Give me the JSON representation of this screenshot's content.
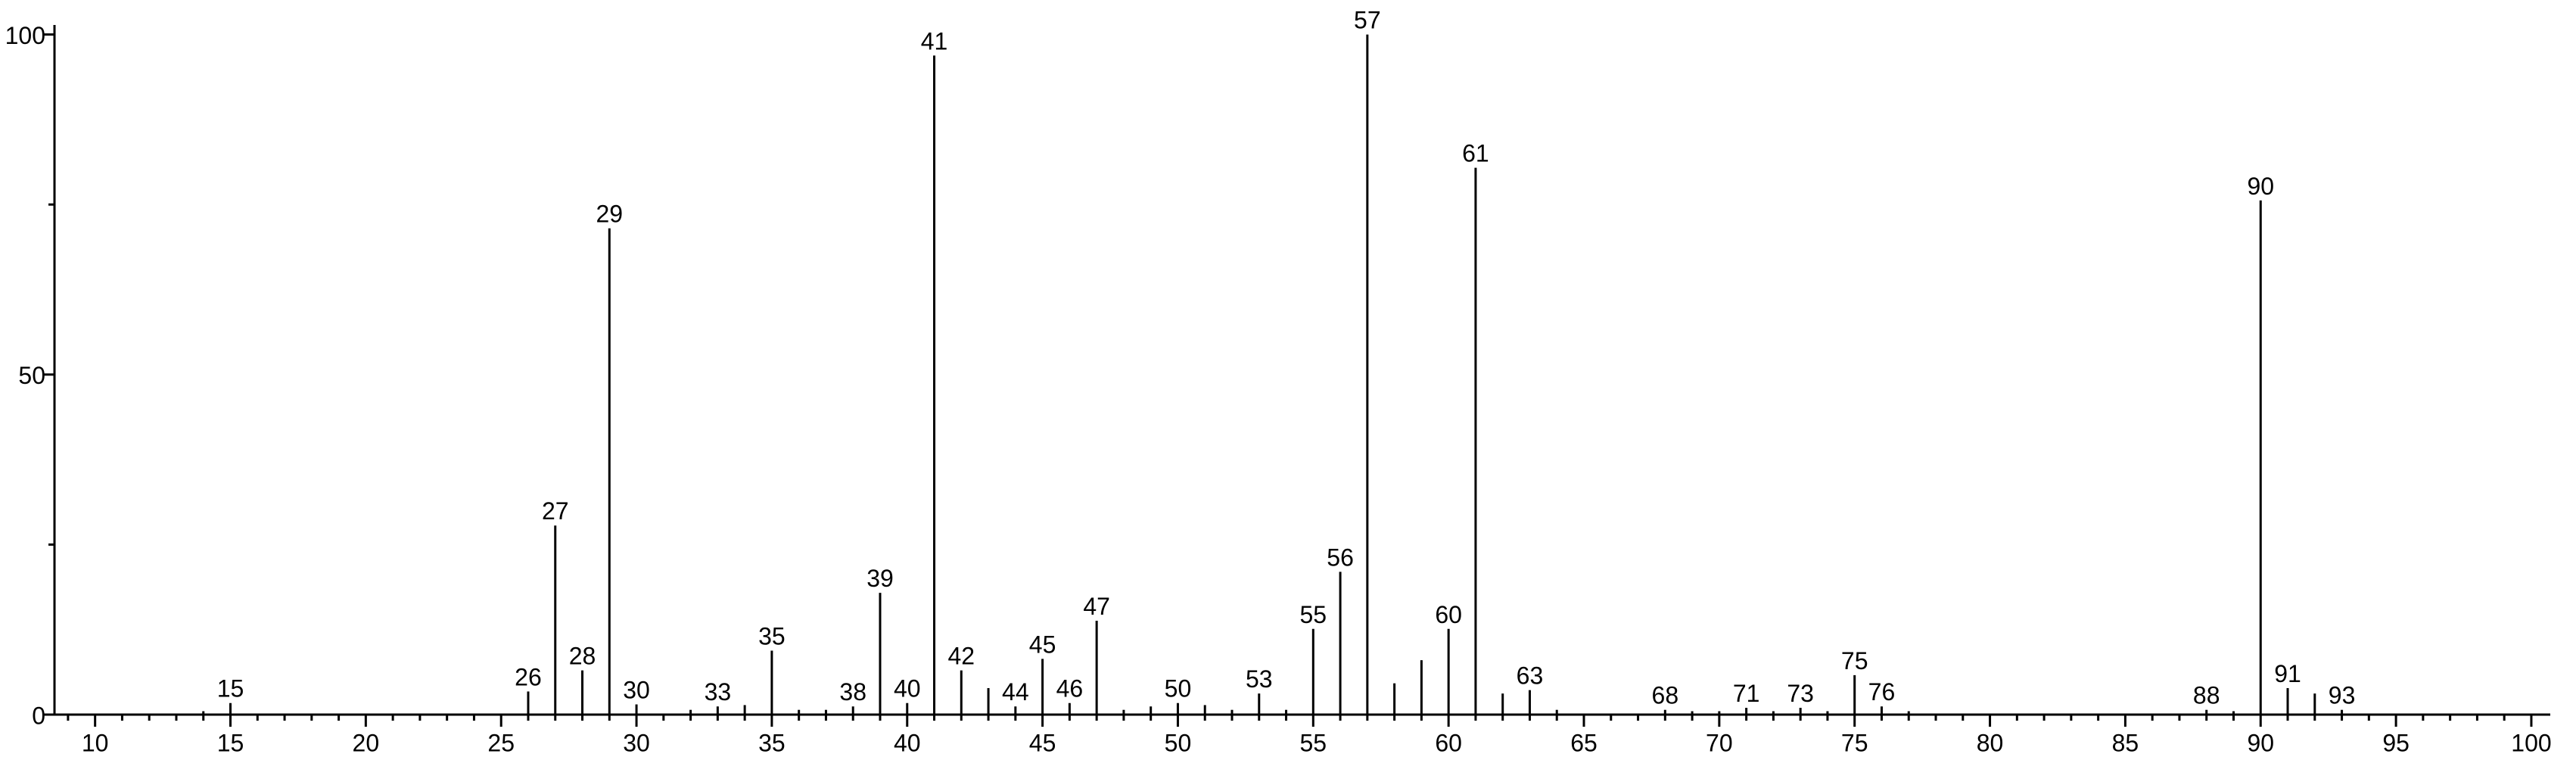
{
  "chart_data": {
    "type": "bar",
    "color": "#000000",
    "x": [
      14,
      15,
      26,
      27,
      28,
      29,
      30,
      32,
      33,
      34,
      35,
      36,
      37,
      38,
      39,
      40,
      41,
      42,
      43,
      44,
      45,
      46,
      47,
      48,
      49,
      50,
      51,
      52,
      53,
      54,
      55,
      56,
      57,
      58,
      59,
      60,
      61,
      62,
      63,
      64,
      68,
      69,
      70,
      71,
      72,
      73,
      74,
      75,
      76,
      77,
      88,
      89,
      90,
      91,
      92,
      93
    ],
    "values": [
      0.5,
      1.7,
      3.4,
      27.8,
      6.5,
      71.5,
      1.5,
      0.7,
      1.2,
      1.4,
      9.4,
      0.7,
      0.7,
      1.2,
      17.9,
      1.7,
      96.9,
      6.5,
      3.9,
      1.2,
      8.2,
      1.7,
      13.8,
      0.7,
      1.2,
      1.7,
      1.4,
      0.7,
      3.1,
      0.7,
      12.6,
      21,
      100,
      4.6,
      8,
      12.6,
      80.4,
      3.1,
      3.6,
      0.7,
      0.7,
      0.5,
      0.5,
      1,
      0.5,
      1,
      0.5,
      5.8,
      1.2,
      0.5,
      0.7,
      0.5,
      75.6,
      3.9,
      3.1,
      0.7
    ],
    "peak_labels": [
      null,
      15,
      26,
      27,
      28,
      29,
      30,
      null,
      33,
      null,
      35,
      null,
      null,
      38,
      39,
      40,
      41,
      42,
      null,
      44,
      45,
      46,
      47,
      null,
      null,
      50,
      null,
      null,
      53,
      null,
      55,
      56,
      57,
      null,
      null,
      60,
      61,
      null,
      63,
      null,
      68,
      null,
      null,
      71,
      null,
      73,
      null,
      75,
      76,
      null,
      88,
      null,
      90,
      91,
      null,
      93
    ],
    "xlim": [
      8.5,
      100.7
    ],
    "ylim": [
      0,
      101.4
    ],
    "xticks": [
      10,
      15,
      20,
      25,
      30,
      35,
      40,
      45,
      50,
      55,
      60,
      65,
      70,
      75,
      80,
      85,
      90,
      95,
      100
    ],
    "xminor_ticks": [
      9,
      11,
      12,
      13,
      14,
      16,
      17,
      18,
      19,
      21,
      22,
      23,
      24,
      26,
      27,
      28,
      29,
      31,
      32,
      33,
      34,
      36,
      37,
      38,
      39,
      41,
      42,
      43,
      44,
      46,
      47,
      48,
      49,
      51,
      52,
      53,
      54,
      56,
      57,
      58,
      59,
      61,
      62,
      63,
      64,
      66,
      67,
      68,
      69,
      71,
      72,
      73,
      74,
      76,
      77,
      78,
      79,
      81,
      82,
      83,
      84,
      86,
      87,
      88,
      89,
      91,
      92,
      93,
      94,
      96,
      97,
      98,
      99
    ],
    "yticks": [
      0,
      50,
      100
    ],
    "yminor_ticks": [
      25,
      75
    ]
  }
}
